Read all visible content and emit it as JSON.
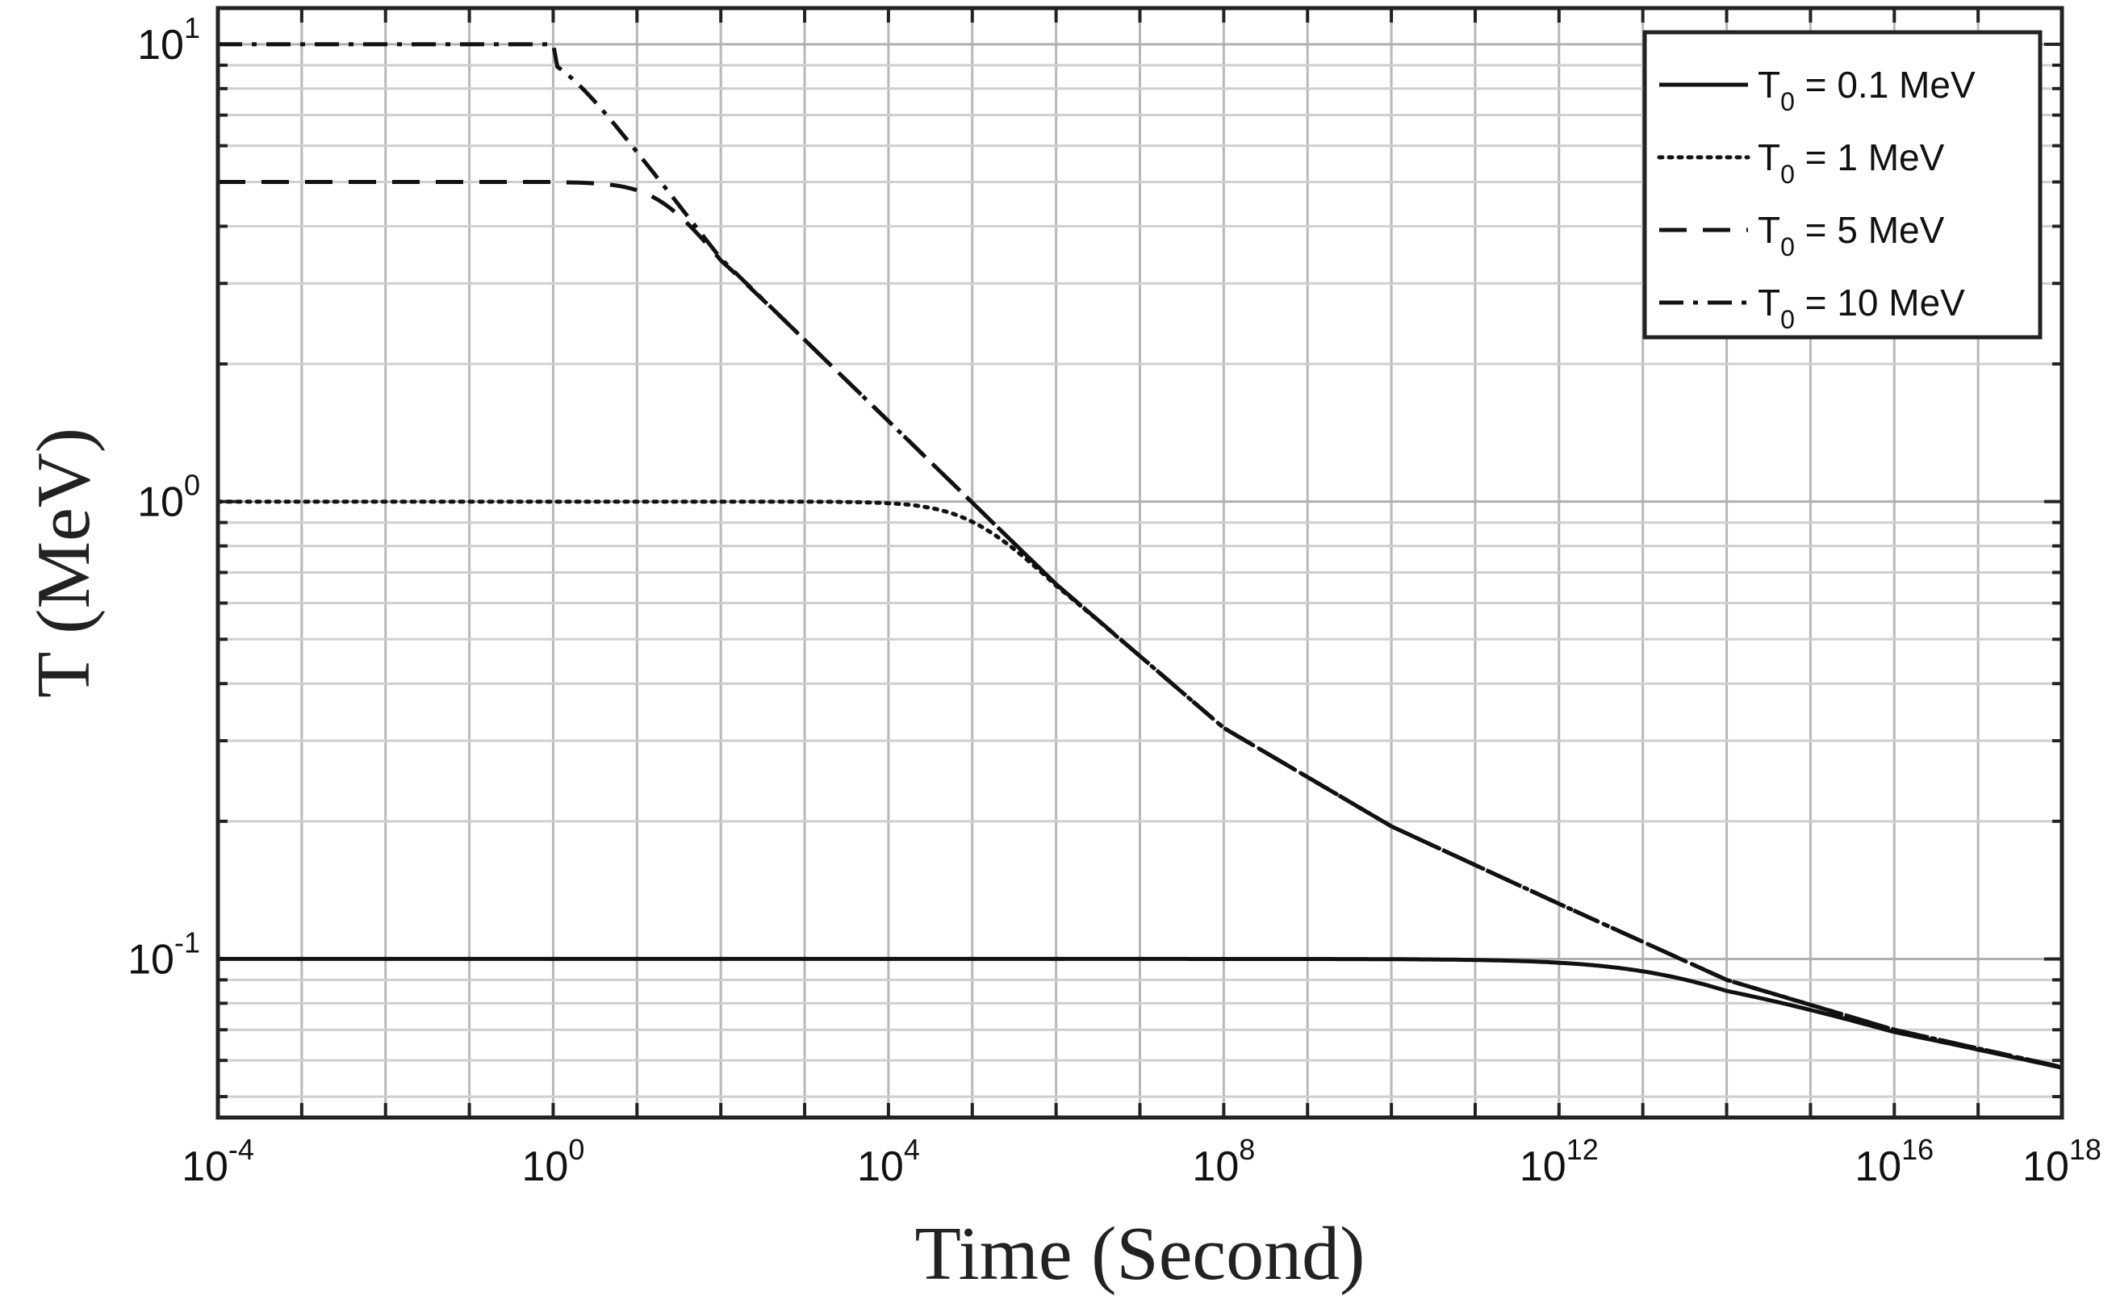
{
  "chart_data": {
    "type": "line",
    "xlabel": "Time (Second)",
    "ylabel": "T (MeV)",
    "x_scale": "log",
    "y_scale": "log",
    "xlim": [
      0.0001,
      1e+18
    ],
    "ylim": [
      0.045,
      12
    ],
    "grid": true,
    "legend_position": "top-right",
    "x_ticks": [
      {
        "base": "10",
        "exp": "-4",
        "value": 0.0001
      },
      {
        "base": "10",
        "exp": "0",
        "value": 1
      },
      {
        "base": "10",
        "exp": "4",
        "value": 10000
      },
      {
        "base": "10",
        "exp": "8",
        "value": 100000000
      },
      {
        "base": "10",
        "exp": "12",
        "value": 1000000000000
      },
      {
        "base": "10",
        "exp": "16",
        "value": 1e+16
      },
      {
        "base": "10",
        "exp": "18",
        "value": 1e+18
      }
    ],
    "y_ticks": [
      {
        "base": "10",
        "exp": "-1",
        "value": 0.1
      },
      {
        "base": "10",
        "exp": "0",
        "value": 1
      },
      {
        "base": "10",
        "exp": "1",
        "value": 10
      }
    ],
    "series": [
      {
        "name": "T0 = 0.1 MeV",
        "label_main": "T",
        "label_sub": "0",
        "label_rest": " = 0.1  MeV",
        "style": "solid",
        "T0": 0.1
      },
      {
        "name": "T0 = 1 MeV",
        "label_main": "T",
        "label_sub": "0",
        "label_rest": " = 1    MeV",
        "style": "dotted",
        "T0": 1
      },
      {
        "name": "T0 = 5 MeV",
        "label_main": "T",
        "label_sub": "0",
        "label_rest": " = 5    MeV",
        "style": "dashed",
        "T0": 5
      },
      {
        "name": "T0 = 10 MeV",
        "label_main": "T",
        "label_sub": "0",
        "label_rest": " = 10 MeV",
        "style": "dashdot",
        "T0": 10
      }
    ],
    "asymptote_points": [
      {
        "x": 1,
        "y": 10
      },
      {
        "x": 100,
        "y": 3.4
      },
      {
        "x": 10000,
        "y": 1.5
      },
      {
        "x": 1000000,
        "y": 0.66
      },
      {
        "x": 100000000,
        "y": 0.32
      },
      {
        "x": 10000000000,
        "y": 0.195
      },
      {
        "x": 1000000000000,
        "y": 0.132
      },
      {
        "x": 100000000000000,
        "y": 0.09
      },
      {
        "x": 1e+16,
        "y": 0.07
      },
      {
        "x": 1e+18,
        "y": 0.058
      }
    ]
  }
}
